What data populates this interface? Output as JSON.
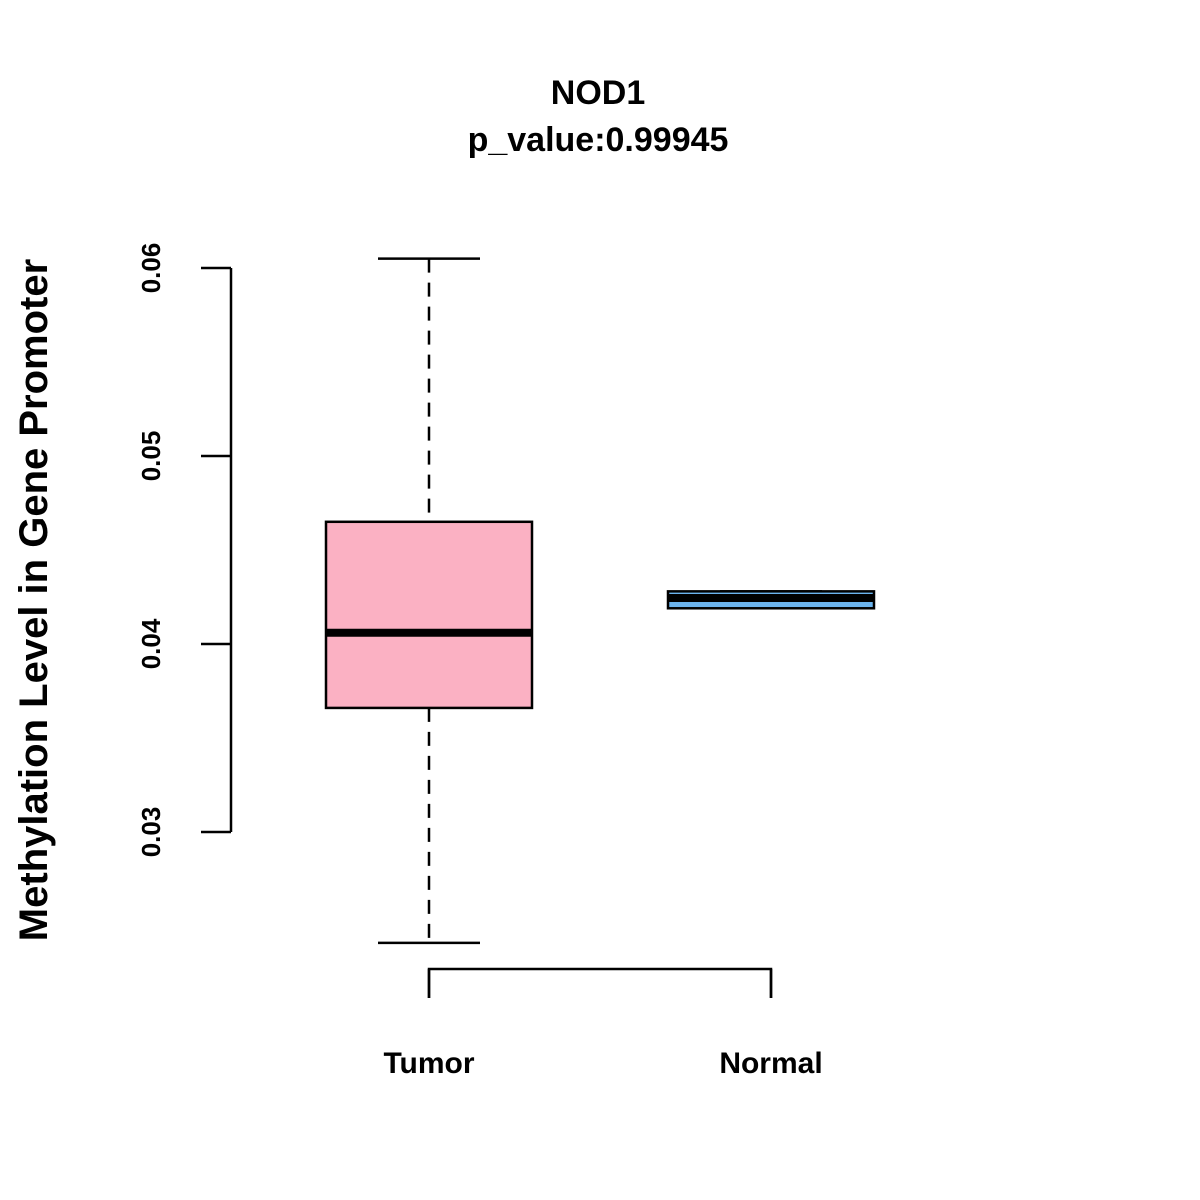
{
  "chart_data": {
    "type": "box",
    "title": "NOD1",
    "subtitle": "p_value:0.99945",
    "xlabel": "",
    "ylabel": "Methylation Level in Gene Promoter",
    "ylim": [
      0.0225,
      0.0615
    ],
    "yticks": [
      0.03,
      0.04,
      0.05,
      0.06
    ],
    "ytick_labels": [
      "0.03",
      "0.04",
      "0.05",
      "0.06"
    ],
    "categories": [
      "Tumor",
      "Normal"
    ],
    "boxes": [
      {
        "name": "Tumor",
        "whisker_low": 0.0241,
        "q1": 0.0366,
        "median": 0.0406,
        "q3": 0.0465,
        "whisker_high": 0.0605,
        "color": "#FBB1C3"
      },
      {
        "name": "Normal",
        "whisker_low": 0.0419,
        "q1": 0.0419,
        "median": 0.04245,
        "q3": 0.0428,
        "whisker_high": 0.0428,
        "color": "#6CB4EE"
      }
    ]
  }
}
